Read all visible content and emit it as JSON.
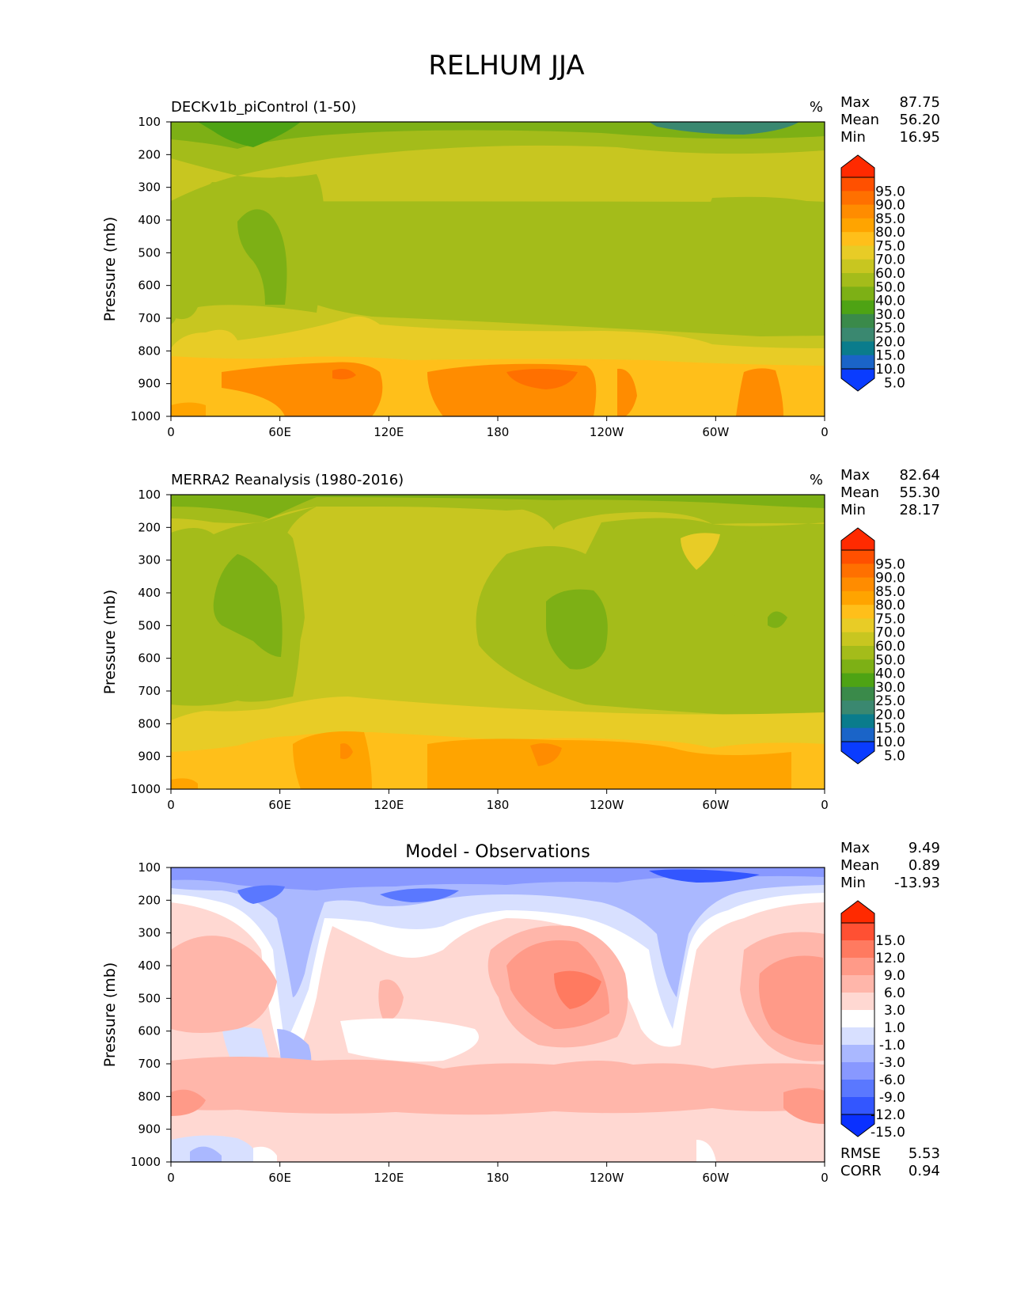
{
  "figure": {
    "title": "RELHUM JJA"
  },
  "x_ticks": [
    "0",
    "60E",
    "120E",
    "180",
    "120W",
    "60W",
    "0"
  ],
  "y_ticks": [
    "100",
    "200",
    "300",
    "400",
    "500",
    "600",
    "700",
    "800",
    "900",
    "1000"
  ],
  "ylabel": "Pressure (mb)",
  "panels": [
    {
      "left_title": "DECKv1b_piControl (1-50)",
      "center_title": "",
      "units": "%",
      "stats": {
        "max_label": "Max",
        "max": "87.75",
        "mean_label": "Mean",
        "mean": "56.20",
        "min_label": "Min",
        "min": "16.95"
      },
      "colorbar": {
        "labels": [
          "95.0",
          "90.0",
          "85.0",
          "80.0",
          "75.0",
          "70.0",
          "60.0",
          "50.0",
          "40.0",
          "30.0",
          "25.0",
          "20.0",
          "15.0",
          "10.0",
          "5.0"
        ],
        "colors": [
          "#ff2a00",
          "#ff5000",
          "#ff7000",
          "#ff8c00",
          "#ffa400",
          "#ffbf1a",
          "#e8cc26",
          "#c8c620",
          "#a4bc1a",
          "#7db015",
          "#4ea314",
          "#3a8a4a",
          "#3a8870",
          "#0a7c8c",
          "#1a64c8",
          "#0a3cff"
        ]
      },
      "bottom_stats": []
    },
    {
      "left_title": "MERRA2 Reanalysis (1980-2016)",
      "center_title": "",
      "units": "%",
      "stats": {
        "max_label": "Max",
        "max": "82.64",
        "mean_label": "Mean",
        "mean": "55.30",
        "min_label": "Min",
        "min": "28.17"
      },
      "colorbar": {
        "labels": [
          "95.0",
          "90.0",
          "85.0",
          "80.0",
          "75.0",
          "70.0",
          "60.0",
          "50.0",
          "40.0",
          "30.0",
          "25.0",
          "20.0",
          "15.0",
          "10.0",
          "5.0"
        ],
        "colors": [
          "#ff2a00",
          "#ff5000",
          "#ff7000",
          "#ff8c00",
          "#ffa400",
          "#ffbf1a",
          "#e8cc26",
          "#c8c620",
          "#a4bc1a",
          "#7db015",
          "#4ea314",
          "#3a8a4a",
          "#3a8870",
          "#0a7c8c",
          "#1a64c8",
          "#0a3cff"
        ]
      },
      "bottom_stats": []
    },
    {
      "left_title": "",
      "center_title": "Model - Observations",
      "units": "",
      "stats": {
        "max_label": "Max",
        "max": "9.49",
        "mean_label": "Mean",
        "mean": "0.89",
        "min_label": "Min",
        "min": "-13.93"
      },
      "colorbar": {
        "labels": [
          "15.0",
          "12.0",
          "9.0",
          "6.0",
          "3.0",
          "1.0",
          "-1.0",
          "-3.0",
          "-6.0",
          "-9.0",
          "-12.0",
          "-15.0"
        ],
        "colors": [
          "#ff2a00",
          "#ff5033",
          "#ff7a60",
          "#ff9a88",
          "#ffb6aa",
          "#ffd8d2",
          "#ffffff",
          "#d8e0ff",
          "#aab8ff",
          "#8898ff",
          "#5a78ff",
          "#3356ff",
          "#0a30ff"
        ]
      },
      "bottom_stats": [
        {
          "label": "RMSE",
          "value": "5.53"
        },
        {
          "label": "CORR",
          "value": "0.94"
        }
      ]
    }
  ],
  "chart_data": [
    {
      "type": "heatmap",
      "title": "DECKv1b_piControl (1-50)",
      "xlabel": "",
      "ylabel": "Pressure (mb)",
      "x": [
        "0",
        "60E",
        "120E",
        "180",
        "120W",
        "60W",
        "0"
      ],
      "y": [
        100,
        200,
        300,
        400,
        500,
        600,
        700,
        800,
        900,
        1000
      ],
      "ylim": [
        1000,
        100
      ],
      "units": "%",
      "levels": [
        5,
        10,
        15,
        20,
        25,
        30,
        40,
        50,
        60,
        70,
        75,
        80,
        85,
        90,
        95
      ],
      "max": 87.75,
      "mean": 56.2,
      "min": 16.95
    },
    {
      "type": "heatmap",
      "title": "MERRA2 Reanalysis (1980-2016)",
      "xlabel": "",
      "ylabel": "Pressure (mb)",
      "x": [
        "0",
        "60E",
        "120E",
        "180",
        "120W",
        "60W",
        "0"
      ],
      "y": [
        100,
        200,
        300,
        400,
        500,
        600,
        700,
        800,
        900,
        1000
      ],
      "ylim": [
        1000,
        100
      ],
      "units": "%",
      "levels": [
        5,
        10,
        15,
        20,
        25,
        30,
        40,
        50,
        60,
        70,
        75,
        80,
        85,
        90,
        95
      ],
      "max": 82.64,
      "mean": 55.3,
      "min": 28.17
    },
    {
      "type": "heatmap",
      "title": "Model - Observations",
      "xlabel": "",
      "ylabel": "Pressure (mb)",
      "x": [
        "0",
        "60E",
        "120E",
        "180",
        "120W",
        "60W",
        "0"
      ],
      "y": [
        100,
        200,
        300,
        400,
        500,
        600,
        700,
        800,
        900,
        1000
      ],
      "ylim": [
        1000,
        100
      ],
      "levels": [
        -15,
        -12,
        -9,
        -6,
        -3,
        -1,
        1,
        3,
        6,
        9,
        12,
        15
      ],
      "max": 9.49,
      "mean": 0.89,
      "min": -13.93,
      "rmse": 5.53,
      "corr": 0.94
    }
  ]
}
